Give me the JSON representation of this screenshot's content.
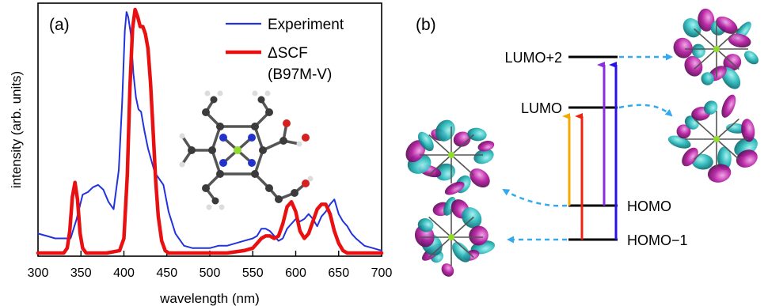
{
  "panel_a": {
    "label": "(a)",
    "xlabel": "wavelength (nm)",
    "ylabel": "intensity (arb. units)",
    "legend": {
      "exp": "Experiment",
      "calc_line1": "ΔSCF",
      "calc_line2": "(B97M-V)"
    }
  },
  "panel_b": {
    "label": "(b)",
    "levels": {
      "lumo2": "LUMO+2",
      "lumo": "LUMO",
      "homo": "HOMO",
      "homo1": "HOMO−1"
    }
  },
  "colors": {
    "experiment": "#2233dd",
    "calc": "#e81010",
    "arrow_orange": "#f5a800",
    "arrow_red": "#ee2211",
    "arrow_purple": "#8a2be2",
    "arrow_blue": "#2a10ee",
    "dashed": "#33aaee",
    "orbital_teal": "#1fb3b3",
    "orbital_magenta": "#b0179e"
  },
  "chart_data": {
    "type": "line",
    "x_ticks": [
      300,
      350,
      400,
      450,
      500,
      550,
      600,
      650,
      700
    ],
    "xlim": [
      300,
      700
    ],
    "ylim": [
      0,
      1
    ],
    "series": [
      {
        "name": "Experiment",
        "x": [
          300,
          310,
          320,
          330,
          338,
          345,
          352,
          358,
          364,
          370,
          376,
          382,
          388,
          394,
          398,
          401,
          403,
          405,
          408,
          411,
          414,
          417,
          420,
          424,
          428,
          432,
          436,
          440,
          446,
          452,
          460,
          470,
          480,
          490,
          500,
          510,
          520,
          530,
          540,
          550,
          555,
          560,
          565,
          570,
          575,
          580,
          585,
          590,
          595,
          600,
          605,
          610,
          615,
          620,
          625,
          630,
          635,
          640,
          645,
          650,
          655,
          660,
          665,
          670,
          680,
          690,
          700
        ],
        "y": [
          0.08,
          0.07,
          0.06,
          0.06,
          0.06,
          0.14,
          0.24,
          0.25,
          0.27,
          0.28,
          0.26,
          0.21,
          0.18,
          0.34,
          0.62,
          0.91,
          0.99,
          0.97,
          0.9,
          0.74,
          0.64,
          0.59,
          0.58,
          0.5,
          0.43,
          0.38,
          0.33,
          0.31,
          0.28,
          0.17,
          0.08,
          0.03,
          0.02,
          0.02,
          0.02,
          0.03,
          0.03,
          0.04,
          0.05,
          0.06,
          0.07,
          0.1,
          0.1,
          0.09,
          0.07,
          0.05,
          0.06,
          0.1,
          0.12,
          0.14,
          0.13,
          0.14,
          0.16,
          0.14,
          0.11,
          0.15,
          0.17,
          0.2,
          0.22,
          0.16,
          0.13,
          0.11,
          0.08,
          0.06,
          0.03,
          0.02,
          0.01
        ]
      },
      {
        "name": "ΔSCF\n(B97M-V)",
        "x": [
          300,
          320,
          330,
          334,
          337,
          340,
          343,
          346,
          349,
          352,
          356,
          360,
          380,
          395,
          400,
          404,
          407,
          410,
          413,
          416,
          419,
          422,
          425,
          428,
          431,
          434,
          437,
          440,
          444,
          448,
          452,
          460,
          480,
          500,
          520,
          540,
          550,
          555,
          560,
          565,
          570,
          575,
          580,
          585,
          590,
          595,
          600,
          605,
          610,
          615,
          620,
          625,
          630,
          635,
          640,
          645,
          650,
          655,
          660,
          670,
          680,
          700
        ],
        "y": [
          0.0,
          0.0,
          0.0,
          0.02,
          0.09,
          0.23,
          0.29,
          0.22,
          0.08,
          0.02,
          0.0,
          0.0,
          0.0,
          0.01,
          0.06,
          0.32,
          0.68,
          0.92,
          1.0,
          0.97,
          0.93,
          0.93,
          0.9,
          0.84,
          0.7,
          0.5,
          0.3,
          0.15,
          0.05,
          0.01,
          0.0,
          0.0,
          0.0,
          0.0,
          0.0,
          0.01,
          0.02,
          0.04,
          0.06,
          0.07,
          0.07,
          0.06,
          0.07,
          0.12,
          0.19,
          0.21,
          0.17,
          0.09,
          0.06,
          0.08,
          0.13,
          0.18,
          0.2,
          0.2,
          0.16,
          0.09,
          0.04,
          0.01,
          0.0,
          0.0,
          0.0,
          0.0
        ]
      }
    ]
  }
}
